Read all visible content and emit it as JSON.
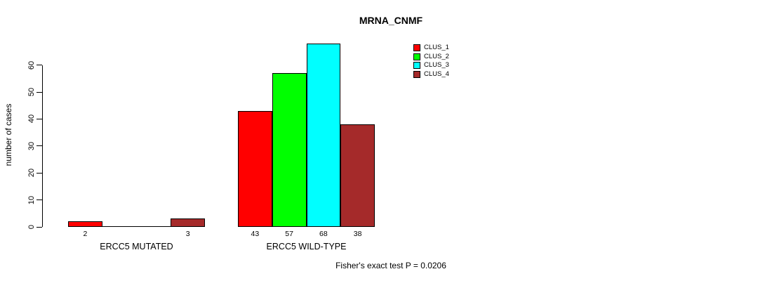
{
  "chart_data": {
    "type": "bar",
    "title": "MRNA_CNMF",
    "ylabel": "number of cases",
    "xlabel": "",
    "annotation": "Fisher's exact test P = 0.0206",
    "ylim": [
      0,
      60
    ],
    "y_ticks": [
      0,
      10,
      20,
      30,
      40,
      50,
      60
    ],
    "grid": false,
    "legend_position": "top-right",
    "categories": [
      "ERCC5 MUTATED",
      "ERCC5 WILD-TYPE"
    ],
    "series": [
      {
        "name": "CLUS_1",
        "color": "#FF0000",
        "values": [
          2,
          43
        ]
      },
      {
        "name": "CLUS_2",
        "color": "#00FF00",
        "values": [
          0,
          57
        ]
      },
      {
        "name": "CLUS_3",
        "color": "#00FFFF",
        "values": [
          0,
          68
        ]
      },
      {
        "name": "CLUS_4",
        "color": "#A52A2A",
        "values": [
          3,
          38
        ]
      }
    ],
    "bar_value_labels": [
      [
        "2",
        "",
        "",
        "3"
      ],
      [
        "43",
        "57",
        "68",
        "38"
      ]
    ]
  }
}
